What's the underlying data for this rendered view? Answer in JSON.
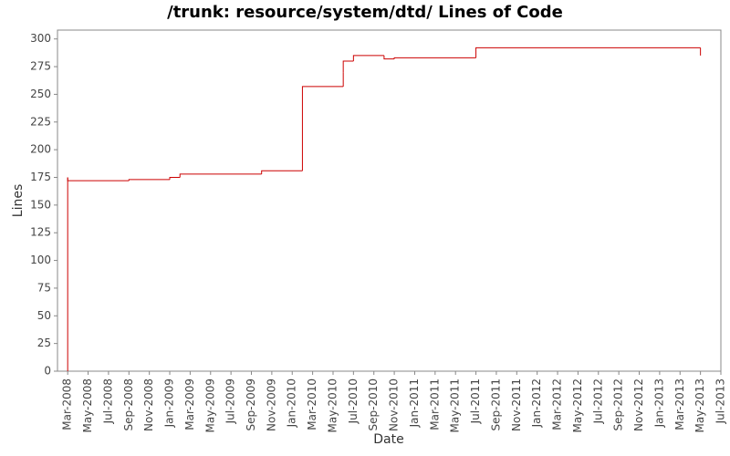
{
  "chart_data": {
    "type": "step",
    "title": "/trunk: resource/system/dtd/ Lines of Code",
    "x_label": "Date",
    "y_label": "Lines",
    "x": [
      "2008-03",
      "2008-03",
      "2008-03",
      "2008-09",
      "2009-01",
      "2009-02",
      "2009-10",
      "2010-02",
      "2010-06",
      "2010-06",
      "2010-07",
      "2010-10",
      "2010-11",
      "2011-07",
      "2013-05"
    ],
    "series": [
      {
        "name": "Lines",
        "color": "#cc0000",
        "values": [
          0,
          175,
          172,
          173,
          175,
          178,
          181,
          257,
          270,
          280,
          285,
          282,
          283,
          292,
          285
        ]
      }
    ],
    "xlim": [
      "2008-02",
      "2013-07"
    ],
    "xticks": [
      {
        "value": "2008-03",
        "label": "Mar-2008"
      },
      {
        "value": "2008-05",
        "label": "May-2008"
      },
      {
        "value": "2008-07",
        "label": "Jul-2008"
      },
      {
        "value": "2008-09",
        "label": "Sep-2008"
      },
      {
        "value": "2008-11",
        "label": "Nov-2008"
      },
      {
        "value": "2009-01",
        "label": "Jan-2009"
      },
      {
        "value": "2009-03",
        "label": "Mar-2009"
      },
      {
        "value": "2009-05",
        "label": "May-2009"
      },
      {
        "value": "2009-07",
        "label": "Jul-2009"
      },
      {
        "value": "2009-09",
        "label": "Sep-2009"
      },
      {
        "value": "2009-11",
        "label": "Nov-2009"
      },
      {
        "value": "2010-01",
        "label": "Jan-2010"
      },
      {
        "value": "2010-03",
        "label": "Mar-2010"
      },
      {
        "value": "2010-05",
        "label": "May-2010"
      },
      {
        "value": "2010-07",
        "label": "Jul-2010"
      },
      {
        "value": "2010-09",
        "label": "Sep-2010"
      },
      {
        "value": "2010-11",
        "label": "Nov-2010"
      },
      {
        "value": "2011-01",
        "label": "Jan-2011"
      },
      {
        "value": "2011-03",
        "label": "Mar-2011"
      },
      {
        "value": "2011-05",
        "label": "May-2011"
      },
      {
        "value": "2011-07",
        "label": "Jul-2011"
      },
      {
        "value": "2011-09",
        "label": "Sep-2011"
      },
      {
        "value": "2011-11",
        "label": "Nov-2011"
      },
      {
        "value": "2012-01",
        "label": "Jan-2012"
      },
      {
        "value": "2012-03",
        "label": "Mar-2012"
      },
      {
        "value": "2012-05",
        "label": "May-2012"
      },
      {
        "value": "2012-07",
        "label": "Jul-2012"
      },
      {
        "value": "2012-09",
        "label": "Sep-2012"
      },
      {
        "value": "2012-11",
        "label": "Nov-2012"
      },
      {
        "value": "2013-01",
        "label": "Jan-2013"
      },
      {
        "value": "2013-03",
        "label": "Mar-2013"
      },
      {
        "value": "2013-05",
        "label": "May-2013"
      },
      {
        "value": "2013-07",
        "label": "Jul-2013"
      }
    ],
    "ylim": [
      0,
      308
    ],
    "yticks": [
      0,
      25,
      50,
      75,
      100,
      125,
      150,
      175,
      200,
      225,
      250,
      275,
      300
    ],
    "grid": false
  }
}
